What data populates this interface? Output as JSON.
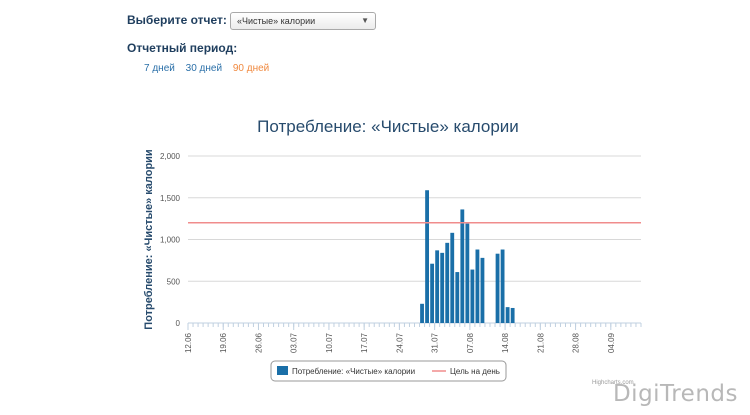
{
  "report": {
    "label": "Выберите отчет:",
    "selected": "«Чистые» калории"
  },
  "period": {
    "label": "Отчетный период:",
    "options": [
      "7 дней",
      "30 дней",
      "90 дней"
    ],
    "active_index": 2
  },
  "chart_data": {
    "type": "bar",
    "title": "Потребление: «Чистые» калории",
    "ylabel": "Потребление: «Чистые» калории",
    "xlabel": "",
    "ylim": [
      0,
      2000
    ],
    "yticks": [
      0,
      500,
      1000,
      1500,
      2000
    ],
    "ytick_labels": [
      "0",
      "500",
      "1,000",
      "1,500",
      "2,000"
    ],
    "x_start": "12.06",
    "x_days": 90,
    "x_tick_labels": [
      "12.06",
      "19.06",
      "26.06",
      "03.07",
      "10.07",
      "17.07",
      "24.07",
      "31.07",
      "07.08",
      "14.08",
      "21.08",
      "28.08",
      "04.09"
    ],
    "series": [
      {
        "name": "Потребление: «Чистые» калории",
        "color": "#1a6fa8",
        "points": [
          {
            "date": "28.07",
            "value": 230
          },
          {
            "date": "29.07",
            "value": 1590
          },
          {
            "date": "30.07",
            "value": 710
          },
          {
            "date": "31.07",
            "value": 870
          },
          {
            "date": "01.08",
            "value": 840
          },
          {
            "date": "02.08",
            "value": 960
          },
          {
            "date": "03.08",
            "value": 1080
          },
          {
            "date": "04.08",
            "value": 610
          },
          {
            "date": "05.08",
            "value": 1360
          },
          {
            "date": "06.08",
            "value": 1190
          },
          {
            "date": "07.08",
            "value": 640
          },
          {
            "date": "08.08",
            "value": 880
          },
          {
            "date": "09.08",
            "value": 780
          },
          {
            "date": "12.08",
            "value": 830
          },
          {
            "date": "13.08",
            "value": 880
          },
          {
            "date": "14.08",
            "value": 190
          },
          {
            "date": "15.08",
            "value": 180
          }
        ]
      }
    ],
    "goal_line": {
      "name": "Цель на день",
      "value": 1200,
      "color": "#f08c8c"
    },
    "legend_position": "bottom-center",
    "grid": true
  },
  "credits": "Highcharts.com",
  "watermark": "DigiTrends"
}
